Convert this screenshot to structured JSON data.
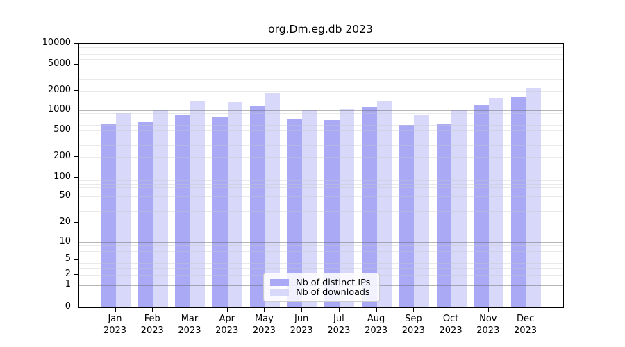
{
  "title": "org.Dm.eg.db 2023",
  "colors": {
    "distinct_ips": "#a9a9f5",
    "downloads": "#d8d8fa",
    "axis": "#000000",
    "legend_border": "#cccccc"
  },
  "legend": {
    "items": [
      {
        "label": "Nb of distinct IPs",
        "color_key": "distinct_ips"
      },
      {
        "label": "Nb of downloads",
        "color_key": "downloads"
      }
    ]
  },
  "x_axis": {
    "months": [
      "Jan",
      "Feb",
      "Mar",
      "Apr",
      "May",
      "Jun",
      "Jul",
      "Aug",
      "Sep",
      "Oct",
      "Nov",
      "Dec"
    ],
    "year": "2023"
  },
  "y_axis": {
    "ticks": [
      0,
      1,
      2,
      5,
      10,
      20,
      50,
      100,
      200,
      500,
      1000,
      2000,
      5000,
      10000
    ]
  },
  "chart_data": {
    "type": "bar",
    "title": "org.Dm.eg.db 2023",
    "categories": [
      "Jan 2023",
      "Feb 2023",
      "Mar 2023",
      "Apr 2023",
      "May 2023",
      "Jun 2023",
      "Jul 2023",
      "Aug 2023",
      "Sep 2023",
      "Oct 2023",
      "Nov 2023",
      "Dec 2023"
    ],
    "series": [
      {
        "name": "Nb of distinct IPs",
        "color_key": "distinct_ips",
        "values": [
          620,
          660,
          840,
          790,
          1160,
          740,
          720,
          1120,
          600,
          630,
          1190,
          1600
        ]
      },
      {
        "name": "Nb of downloads",
        "color_key": "downloads",
        "values": [
          900,
          1000,
          1400,
          1350,
          1870,
          1020,
          1050,
          1420,
          850,
          1020,
          1580,
          2190
        ]
      }
    ],
    "yscale": "symlog",
    "ylim": [
      0,
      10000
    ],
    "y_ticks": [
      0,
      1,
      2,
      5,
      10,
      20,
      50,
      100,
      200,
      500,
      1000,
      2000,
      5000,
      10000
    ],
    "grid": "horizontal major and minor gridlines",
    "legend_position": "lower center"
  }
}
